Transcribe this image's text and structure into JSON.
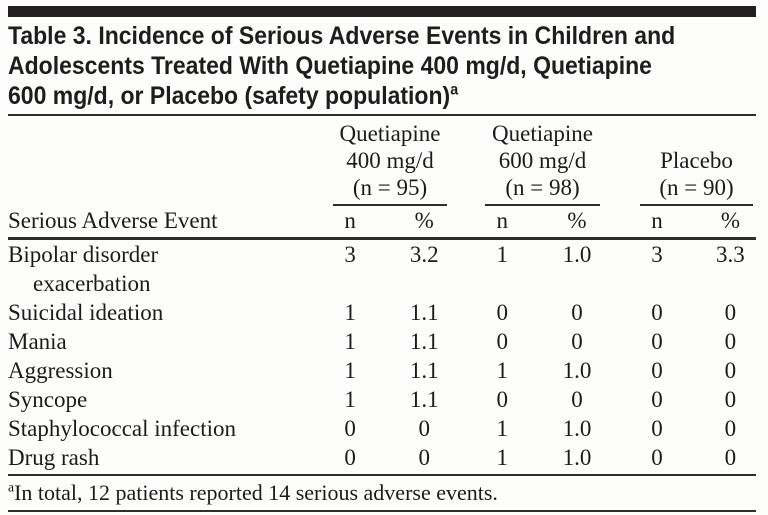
{
  "page": {
    "background": "#fdfdfb",
    "bar_color": "#231f20",
    "rule_color": "#2e2e2c",
    "text_color": "#1b1b1b"
  },
  "table": {
    "title_lines": [
      "Table 3. Incidence of Serious Adverse Events in Children and",
      "Adolescents Treated With Quetiapine 400 mg/d, Quetiapine",
      "600 mg/d, or Placebo (safety population)"
    ],
    "title_footnote_marker": "a",
    "row_header_label": "Serious Adverse Event",
    "groups": [
      {
        "name": "quetiapine-400",
        "lines": [
          "Quetiapine",
          "400 mg/d",
          "(n = 95)"
        ]
      },
      {
        "name": "quetiapine-600",
        "lines": [
          "Quetiapine",
          "600 mg/d",
          "(n = 98)"
        ]
      },
      {
        "name": "placebo",
        "lines": [
          "Placebo",
          "(n = 90)"
        ]
      }
    ],
    "subheaders": [
      "n",
      "%"
    ],
    "rows": [
      {
        "label": "Bipolar disorder",
        "label2": "exacerbation",
        "values": [
          "3",
          "3.2",
          "1",
          "1.0",
          "3",
          "3.3"
        ]
      },
      {
        "label": "Suicidal ideation",
        "label2": "",
        "values": [
          "1",
          "1.1",
          "0",
          "0",
          "0",
          "0"
        ]
      },
      {
        "label": "Mania",
        "label2": "",
        "values": [
          "1",
          "1.1",
          "0",
          "0",
          "0",
          "0"
        ]
      },
      {
        "label": "Aggression",
        "label2": "",
        "values": [
          "1",
          "1.1",
          "1",
          "1.0",
          "0",
          "0"
        ]
      },
      {
        "label": "Syncope",
        "label2": "",
        "values": [
          "1",
          "1.1",
          "0",
          "0",
          "0",
          "0"
        ]
      },
      {
        "label": "Staphylococcal infection",
        "label2": "",
        "values": [
          "0",
          "0",
          "1",
          "1.0",
          "0",
          "0"
        ]
      },
      {
        "label": "Drug rash",
        "label2": "",
        "values": [
          "0",
          "0",
          "1",
          "1.0",
          "0",
          "0"
        ]
      }
    ],
    "footnote_marker": "a",
    "footnote_text": "In total, 12 patients reported 14 serious adverse events."
  }
}
